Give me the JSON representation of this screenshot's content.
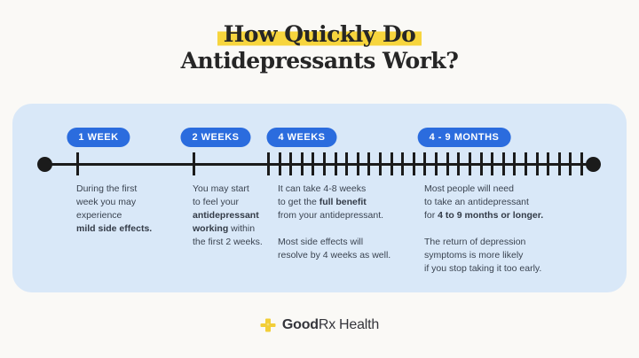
{
  "title": {
    "line1": "How Quickly Do",
    "line2": "Antidepressants Work?"
  },
  "timeline": {
    "badges": [
      {
        "label": "1 WEEK"
      },
      {
        "label": "2 WEEKS"
      },
      {
        "label": "4 WEEKS"
      },
      {
        "label": "4 - 9 MONTHS"
      }
    ]
  },
  "notes": {
    "week1": {
      "normal1": "During the first\nweek you may\nexperience\n",
      "bold1": "mild side effects."
    },
    "week2": {
      "normal1": "You may start\nto feel your\n",
      "bold1": "antidepressant\nworking",
      "normal2": " within\nthe first 2 weeks."
    },
    "week4": {
      "normal1": "It can take 4-8 weeks\nto get the ",
      "bold1": "full benefit",
      "normal2": "\nfrom your antidepressant.",
      "p2": "Most side effects will\nresolve by 4 weeks as well."
    },
    "months": {
      "normal1": "Most people will need\nto take an antidepressant\nfor ",
      "bold1": "4 to 9 months or longer.",
      "p2": "The return of depression\nsymptoms is more likely\nif you stop taking it too early."
    }
  },
  "footer": {
    "brand_good": "Good",
    "brand_rx": "Rx",
    "brand_health": "Health"
  },
  "colors": {
    "page_background": "#FAF9F6",
    "panel_background": "#D9E8F8",
    "badge_blue": "#2B6CDE",
    "title_highlight": "#F7D53D",
    "timeline_black": "#1B1B1B",
    "body_text": "#3A4350",
    "logo_yellow": "#F2CE38"
  }
}
